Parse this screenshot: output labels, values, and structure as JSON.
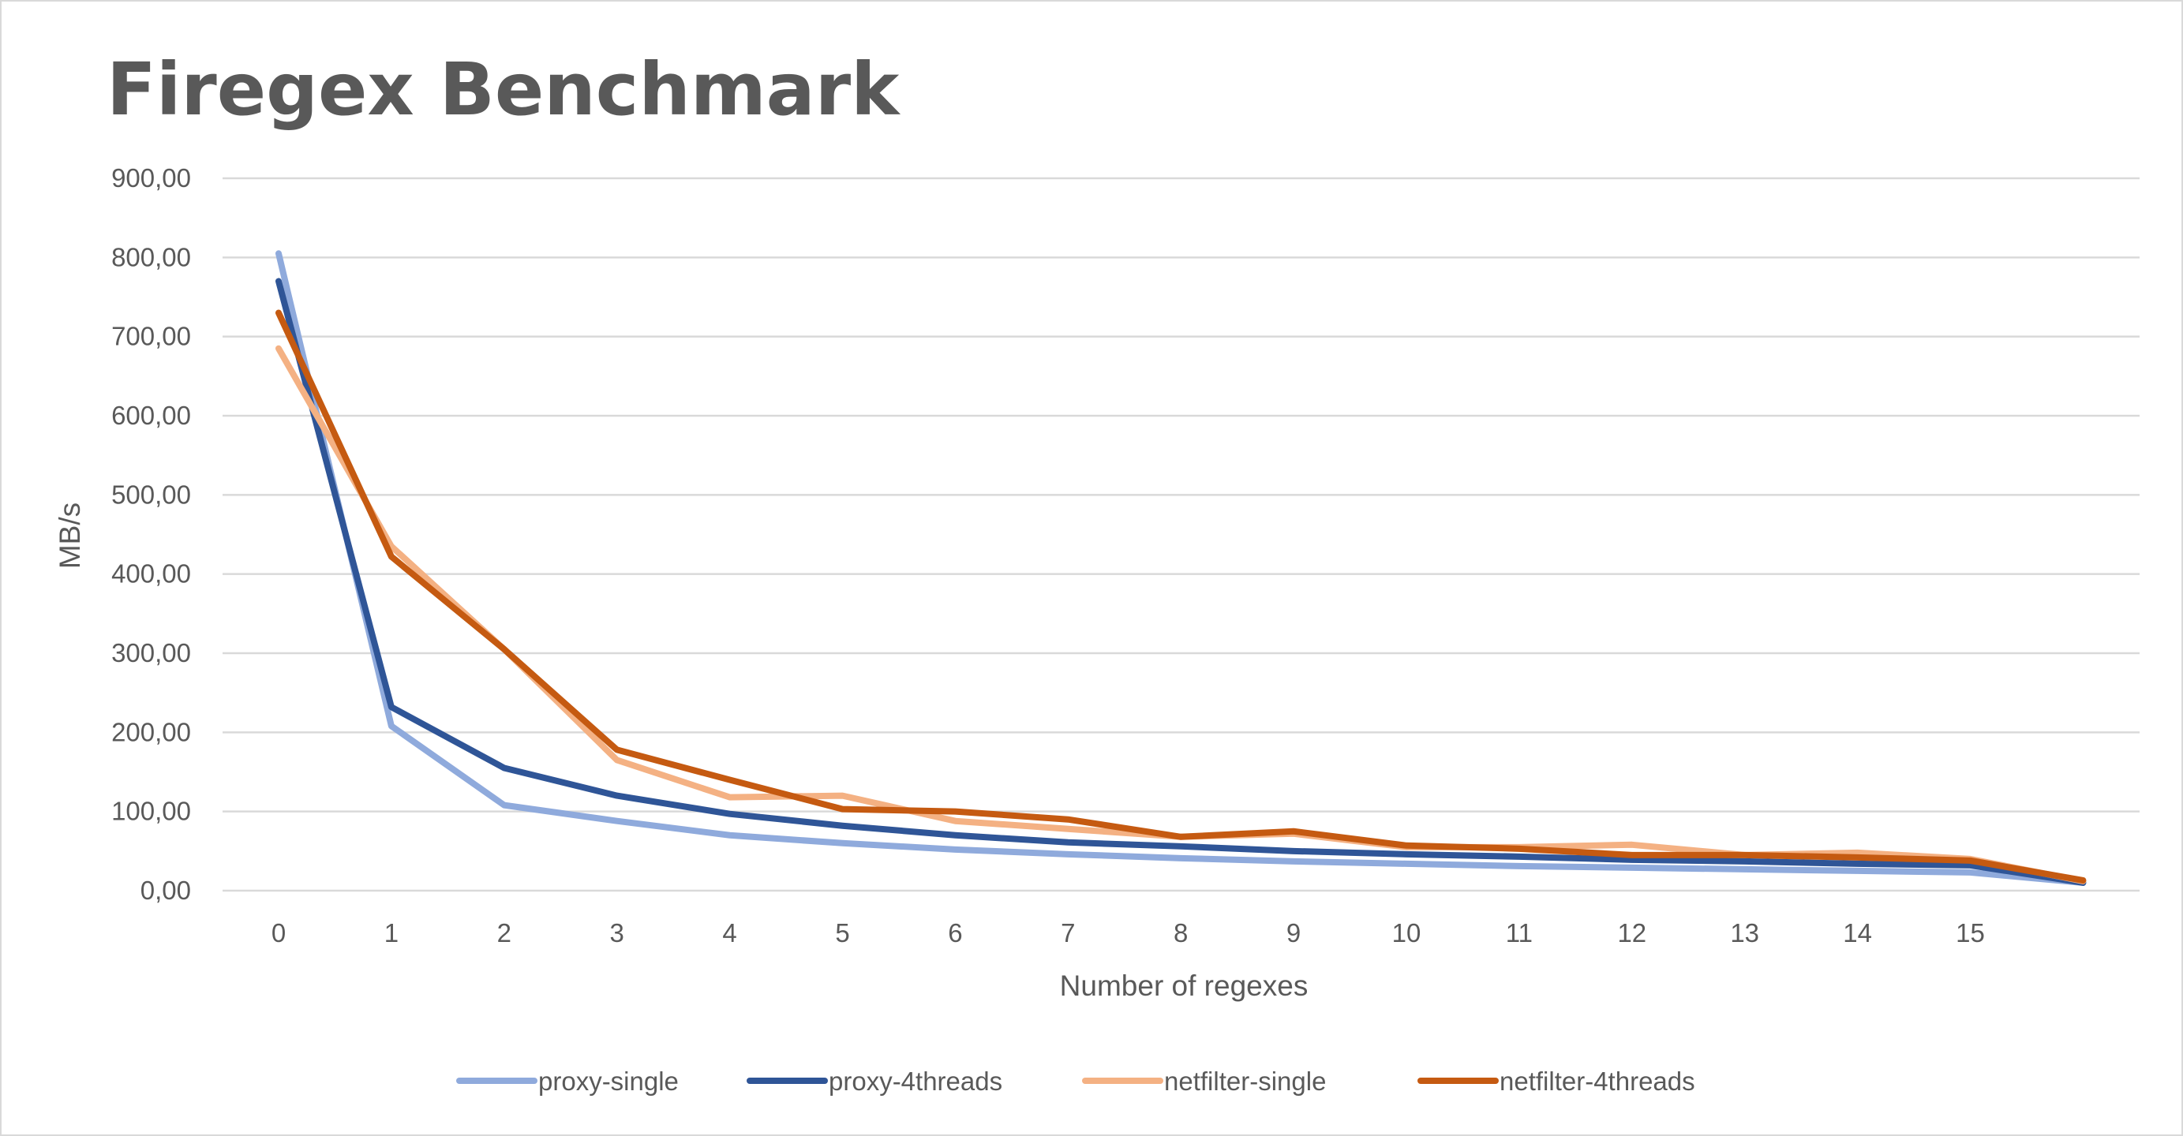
{
  "chart_data": {
    "type": "line",
    "title": "Firegex Benchmark",
    "xlabel": "Number of regexes",
    "ylabel": "MB/s",
    "ylim": [
      0,
      900
    ],
    "yticks": [
      "0,00",
      "100,00",
      "200,00",
      "300,00",
      "400,00",
      "500,00",
      "600,00",
      "700,00",
      "800,00",
      "900,00"
    ],
    "categories": [
      "0",
      "1",
      "2",
      "3",
      "4",
      "5",
      "6",
      "7",
      "8",
      "9",
      "10",
      "11",
      "12",
      "13",
      "14",
      "15",
      ""
    ],
    "grid": true,
    "legend": "bottom",
    "series": [
      {
        "name": "proxy-single",
        "color": "#8FAADC",
        "values": [
          805,
          208,
          108,
          88,
          70,
          60,
          52,
          46,
          41,
          37,
          34,
          31,
          29,
          27,
          25,
          23,
          10
        ]
      },
      {
        "name": "proxy-4threads",
        "color": "#2F5597",
        "values": [
          770,
          232,
          155,
          120,
          97,
          82,
          70,
          61,
          56,
          50,
          46,
          43,
          39,
          37,
          34,
          32,
          10
        ]
      },
      {
        "name": "netfilter-single",
        "color": "#F4B183",
        "values": [
          685,
          435,
          305,
          165,
          118,
          120,
          88,
          78,
          68,
          72,
          55,
          55,
          58,
          45,
          48,
          40,
          12
        ]
      },
      {
        "name": "netfilter-4threads",
        "color": "#C55A11",
        "values": [
          730,
          422,
          305,
          178,
          140,
          103,
          100,
          90,
          68,
          75,
          57,
          53,
          45,
          45,
          42,
          38,
          13
        ]
      }
    ]
  }
}
